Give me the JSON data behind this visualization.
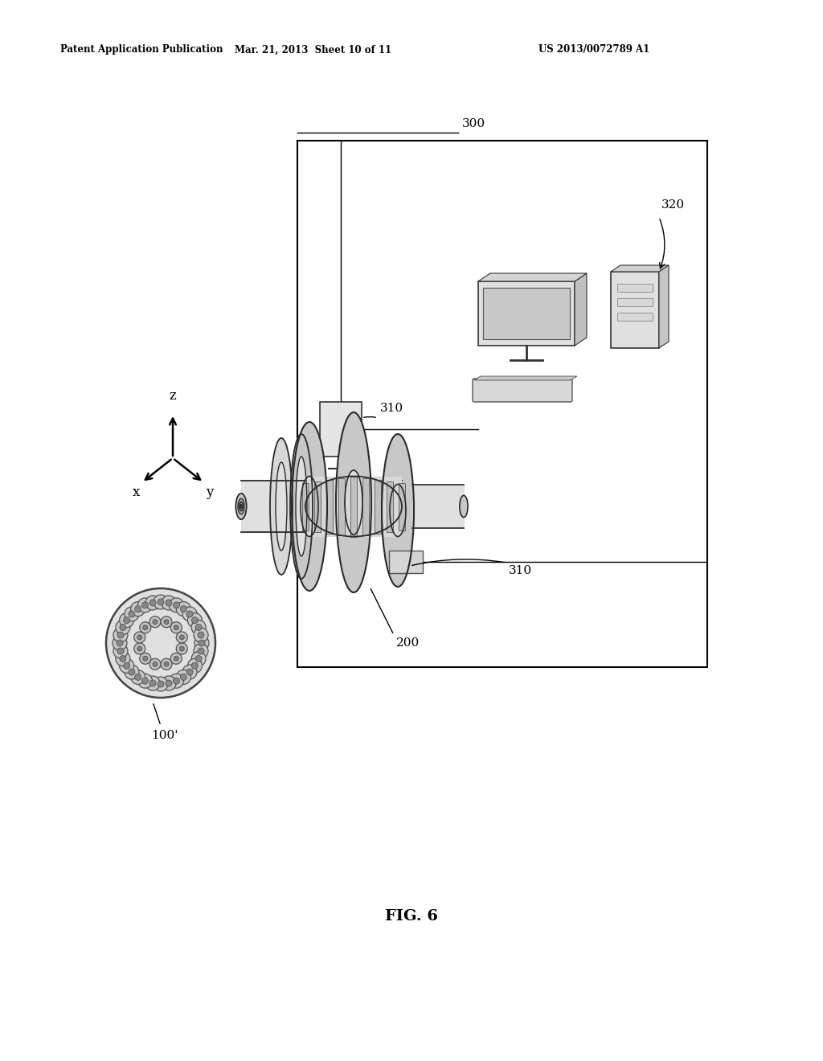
{
  "bg_color": "#ffffff",
  "header_left": "Patent Application Publication",
  "header_mid": "Mar. 21, 2013  Sheet 10 of 11",
  "header_right": "US 2013/0072789 A1",
  "fig_label": "FIG. 6",
  "box_label": "300",
  "label_320": "320",
  "label_310a": "310",
  "label_310b": "310",
  "label_200": "200",
  "label_100": "100'",
  "axis_z": "z",
  "axis_x": "x",
  "axis_y": "y"
}
